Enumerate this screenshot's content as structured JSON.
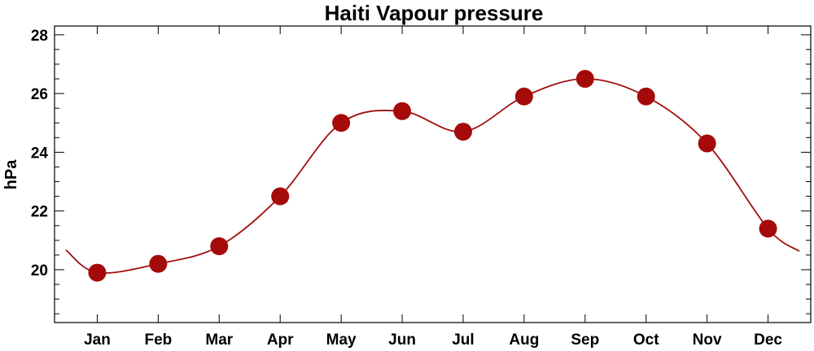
{
  "chart_data": {
    "type": "line",
    "title": "Haiti Vapour pressure",
    "xlabel": "",
    "ylabel": "hPa",
    "categories": [
      "Jan",
      "Feb",
      "Mar",
      "Apr",
      "May",
      "Jun",
      "Jul",
      "Aug",
      "Sep",
      "Oct",
      "Nov",
      "Dec"
    ],
    "series": [
      {
        "values": [
          19.9,
          20.2,
          20.8,
          22.5,
          25.0,
          25.4,
          24.7,
          25.9,
          26.5,
          25.9,
          24.3,
          21.4
        ]
      }
    ],
    "ylim": [
      18.2,
      28.3
    ],
    "yticks": [
      20,
      22,
      24,
      26,
      28
    ],
    "yminor_step": 0.5,
    "grid": false,
    "legend": "none",
    "colors": {
      "line": "#a01010",
      "marker": "#a50a0a",
      "axis": "#000000"
    }
  }
}
